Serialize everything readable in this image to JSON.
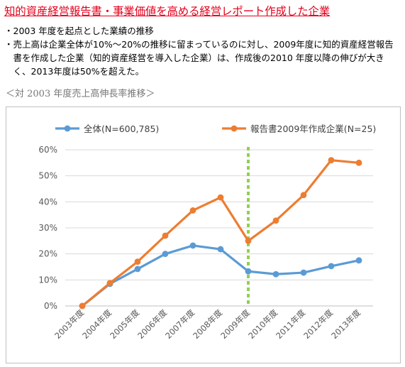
{
  "header": {
    "title": "知的資産経営報告書・事業価値を高める経営レポート作成した企業"
  },
  "bullets": [
    "2003 年度を起点とした業績の推移",
    "売上高は企業全体が10%〜20%の推移に留まっているのに対し、2009年度に知的資産経営報告書を作成した企業（知的資産経営を導入した企業）は、作成後の2010 年度以降の伸びが大きく、2013年度は50%を超えた。"
  ],
  "bullet_mark": "・",
  "subtitle": "＜対 2003 年度売上高伸長率推移＞",
  "chart_data": {
    "type": "line",
    "title": "",
    "xlabel": "",
    "ylabel": "",
    "categories": [
      "2003年度",
      "2004年度",
      "2005年度",
      "2006年度",
      "2007年度",
      "2008年度",
      "2009年度",
      "2010年度",
      "2011年度",
      "2012年度",
      "2013年度"
    ],
    "ylim": [
      0,
      60
    ],
    "yticks": [
      0,
      10,
      20,
      30,
      40,
      50,
      60
    ],
    "ytick_labels": [
      "0%",
      "10%",
      "20%",
      "30%",
      "40%",
      "50%",
      "60%"
    ],
    "series": [
      {
        "name": "全体(N=600,785)",
        "color": "#5b9bd5",
        "values": [
          0,
          8.5,
          14.2,
          20,
          23.2,
          21.8,
          13.3,
          12.2,
          12.8,
          15.3,
          17.5
        ]
      },
      {
        "name": "報告書2009年作成企業(N=25)",
        "color": "#ed7d31",
        "values": [
          0,
          8.8,
          17,
          27,
          36.7,
          41.7,
          25,
          32.8,
          42.6,
          56,
          55
        ]
      }
    ],
    "marker_category": "2009年度",
    "marker_color": "#92d050",
    "grid": true,
    "legend_position": "top"
  }
}
